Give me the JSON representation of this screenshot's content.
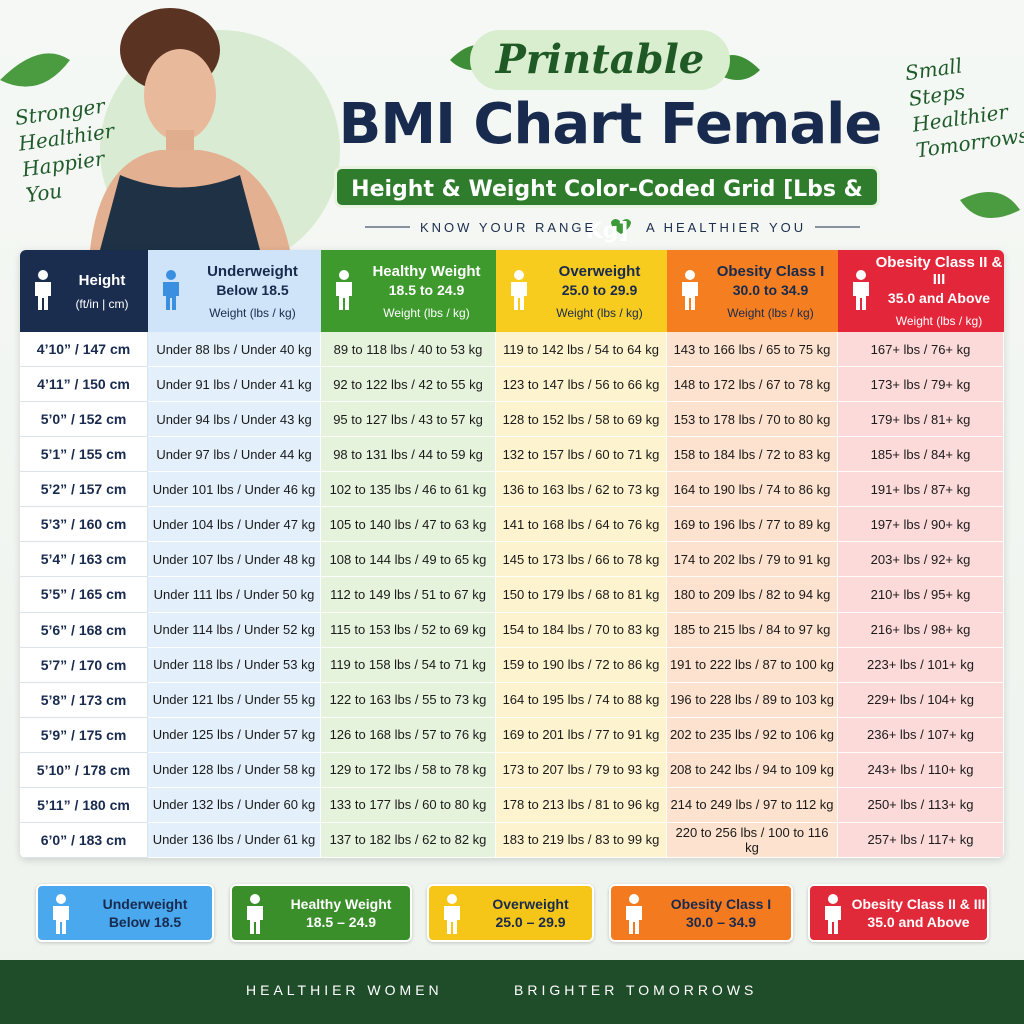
{
  "header": {
    "kicker": "Printable",
    "title": "BMI Chart Female",
    "subtitle": "Height & Weight Color-Coded Grid [Lbs & Kg]",
    "tagline_left": "KNOW YOUR RANGE",
    "tagline_right": "A HEALTHIER YOU"
  },
  "side_left": [
    "Stronger",
    "Healthier",
    "Happier",
    "You"
  ],
  "side_right": [
    "Small",
    "Steps",
    "Healthier",
    "Tomorrows"
  ],
  "table": {
    "columns": [
      {
        "title": "Height",
        "sub": "(ft/in | cm)"
      },
      {
        "title": "Underweight",
        "range": "Below 18.5",
        "sub": "Weight (lbs / kg)"
      },
      {
        "title": "Healthy Weight",
        "range": "18.5 to 24.9",
        "sub": "Weight (lbs / kg)"
      },
      {
        "title": "Overweight",
        "range": "25.0 to 29.9",
        "sub": "Weight (lbs / kg)"
      },
      {
        "title": "Obesity Class I",
        "range": "30.0 to 34.9",
        "sub": "Weight (lbs / kg)"
      },
      {
        "title": "Obesity Class II & III",
        "range": "35.0 and Above",
        "sub": "Weight (lbs / kg)"
      }
    ],
    "rows": [
      [
        "4’10” / 147 cm",
        "Under 88 lbs / Under 40 kg",
        "89 to 118 lbs / 40 to 53 kg",
        "119 to 142 lbs / 54 to 64 kg",
        "143 to 166 lbs / 65 to 75 kg",
        "167+ lbs / 76+ kg"
      ],
      [
        "4’11” / 150 cm",
        "Under 91 lbs / Under 41 kg",
        "92 to 122 lbs / 42 to 55 kg",
        "123 to 147 lbs / 56 to 66 kg",
        "148 to 172 lbs / 67 to 78 kg",
        "173+ lbs / 79+ kg"
      ],
      [
        "5’0” / 152 cm",
        "Under 94 lbs / Under 43 kg",
        "95 to 127 lbs / 43 to 57 kg",
        "128 to 152 lbs / 58 to 69 kg",
        "153 to 178 lbs / 70 to 80 kg",
        "179+ lbs / 81+ kg"
      ],
      [
        "5’1” / 155 cm",
        "Under 97 lbs / Under 44 kg",
        "98 to 131 lbs / 44 to 59 kg",
        "132 to 157 lbs / 60 to 71 kg",
        "158 to 184 lbs / 72 to 83 kg",
        "185+ lbs / 84+ kg"
      ],
      [
        "5’2” / 157 cm",
        "Under 101 lbs / Under 46 kg",
        "102 to 135 lbs / 46 to 61 kg",
        "136 to 163 lbs / 62 to 73 kg",
        "164 to 190 lbs / 74 to 86 kg",
        "191+ lbs / 87+ kg"
      ],
      [
        "5’3” / 160 cm",
        "Under 104 lbs / Under 47 kg",
        "105 to 140 lbs / 47 to 63 kg",
        "141 to 168 lbs / 64 to 76 kg",
        "169 to 196 lbs / 77 to 89 kg",
        "197+ lbs / 90+ kg"
      ],
      [
        "5’4” / 163 cm",
        "Under 107 lbs / Under 48 kg",
        "108 to 144 lbs / 49 to 65 kg",
        "145 to 173 lbs / 66 to 78 kg",
        "174 to 202 lbs / 79 to 91 kg",
        "203+ lbs / 92+ kg"
      ],
      [
        "5’5” / 165 cm",
        "Under 111 lbs / Under 50 kg",
        "112 to 149 lbs / 51 to 67 kg",
        "150 to 179 lbs / 68 to 81 kg",
        "180 to 209 lbs / 82 to 94 kg",
        "210+ lbs / 95+ kg"
      ],
      [
        "5’6” / 168 cm",
        "Under 114 lbs / Under 52 kg",
        "115 to 153 lbs / 52 to 69 kg",
        "154 to 184 lbs / 70 to 83 kg",
        "185 to 215 lbs / 84 to 97 kg",
        "216+ lbs / 98+ kg"
      ],
      [
        "5’7” / 170 cm",
        "Under 118 lbs / Under 53 kg",
        "119 to 158 lbs / 54 to 71 kg",
        "159 to 190 lbs / 72 to 86 kg",
        "191 to 222 lbs / 87 to 100 kg",
        "223+ lbs / 101+ kg"
      ],
      [
        "5’8” / 173 cm",
        "Under 121 lbs / Under 55 kg",
        "122 to 163 lbs / 55 to 73 kg",
        "164 to 195 lbs / 74 to 88 kg",
        "196 to 228 lbs / 89 to 103 kg",
        "229+ lbs / 104+ kg"
      ],
      [
        "5’9” / 175 cm",
        "Under 125 lbs / Under 57 kg",
        "126 to 168 lbs / 57 to 76 kg",
        "169 to 201 lbs / 77 to 91 kg",
        "202 to 235 lbs / 92 to 106 kg",
        "236+ lbs / 107+ kg"
      ],
      [
        "5’10” / 178 cm",
        "Under 128 lbs / Under 58 kg",
        "129 to 172 lbs / 58 to 78 kg",
        "173 to 207 lbs / 79 to 93 kg",
        "208 to 242 lbs / 94 to 109 kg",
        "243+ lbs / 110+ kg"
      ],
      [
        "5’11” / 180 cm",
        "Under 132 lbs / Under 60 kg",
        "133 to 177 lbs / 60 to 80 kg",
        "178 to 213 lbs / 81 to 96 kg",
        "214 to 249 lbs / 97 to 112 kg",
        "250+ lbs / 113+ kg"
      ],
      [
        "6’0” / 183 cm",
        "Under 136 lbs / Under 61 kg",
        "137 to 182 lbs / 62 to 82 kg",
        "183 to 219 lbs / 83 to 99 kg",
        "220 to 256 lbs / 100 to 116 kg",
        "257+ lbs / 117+ kg"
      ]
    ]
  },
  "legend": [
    {
      "title": "Underweight",
      "range": "Below 18.5"
    },
    {
      "title": "Healthy Weight",
      "range": "18.5 – 24.9"
    },
    {
      "title": "Overweight",
      "range": "25.0 – 29.9"
    },
    {
      "title": "Obesity Class I",
      "range": "30.0 – 34.9"
    },
    {
      "title": "Obesity Class II & III",
      "range": "35.0 and Above"
    }
  ],
  "footer": {
    "left": "HEALTHIER WOMEN",
    "right": "BRIGHTER TOMORROWS"
  }
}
